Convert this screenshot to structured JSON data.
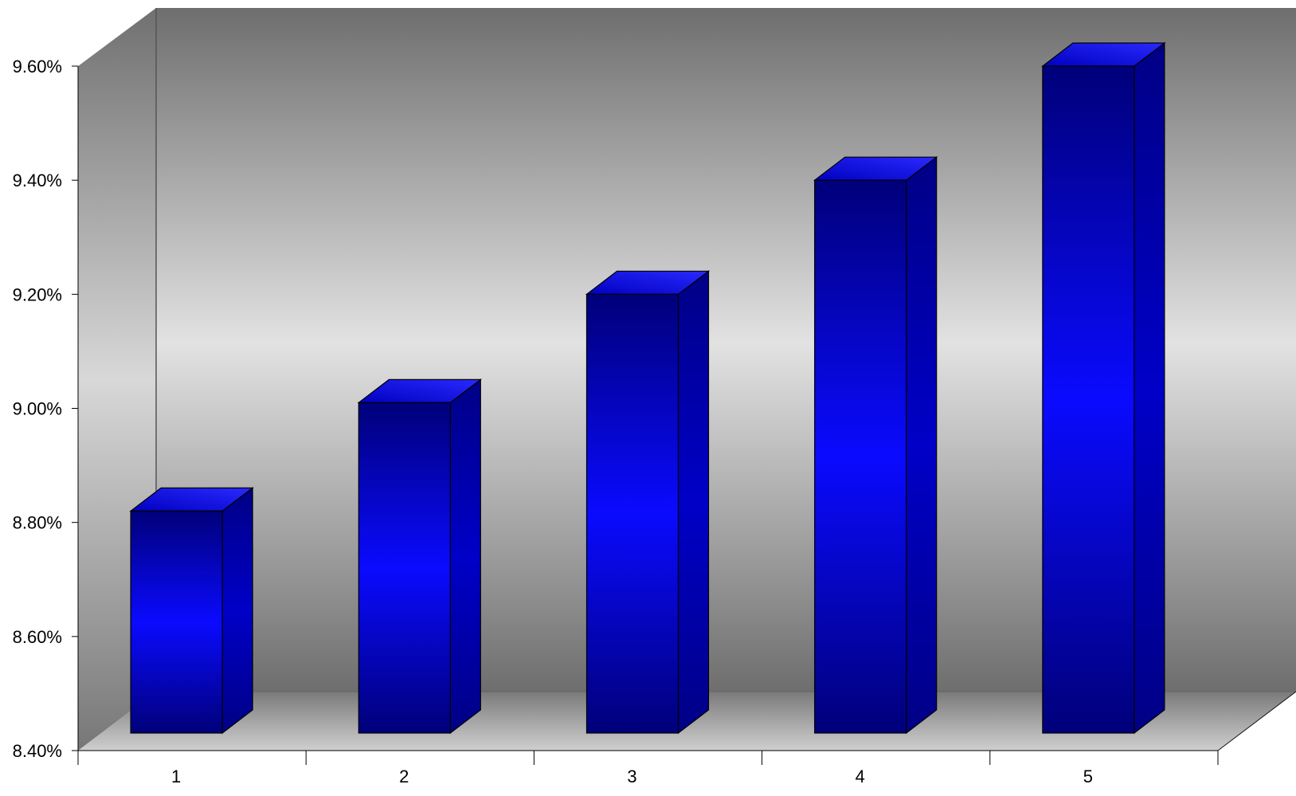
{
  "chart_data": {
    "type": "bar",
    "style": "3d-column",
    "categories": [
      "1",
      "2",
      "3",
      "4",
      "5"
    ],
    "values": [
      8.82,
      9.01,
      9.2,
      9.4,
      9.6
    ],
    "ylim": [
      8.4,
      9.6
    ],
    "y_ticks": [
      8.4,
      8.6,
      8.8,
      9.0,
      9.2,
      9.4,
      9.6
    ],
    "y_tick_labels": [
      "8.40%",
      "8.60%",
      "8.80%",
      "9.00%",
      "9.20%",
      "9.40%",
      "9.60%"
    ],
    "title": "",
    "xlabel": "",
    "ylabel": "",
    "grid": false,
    "legend": "none"
  },
  "colors": {
    "bar_front_dark": "#00007a",
    "bar_front_light": "#0a0aff",
    "bar_side": "#00009a",
    "bar_top": "#1515ee",
    "wall_dark": "#6e6e6e",
    "wall_light": "#e2e2e2",
    "outline": "#000000"
  }
}
